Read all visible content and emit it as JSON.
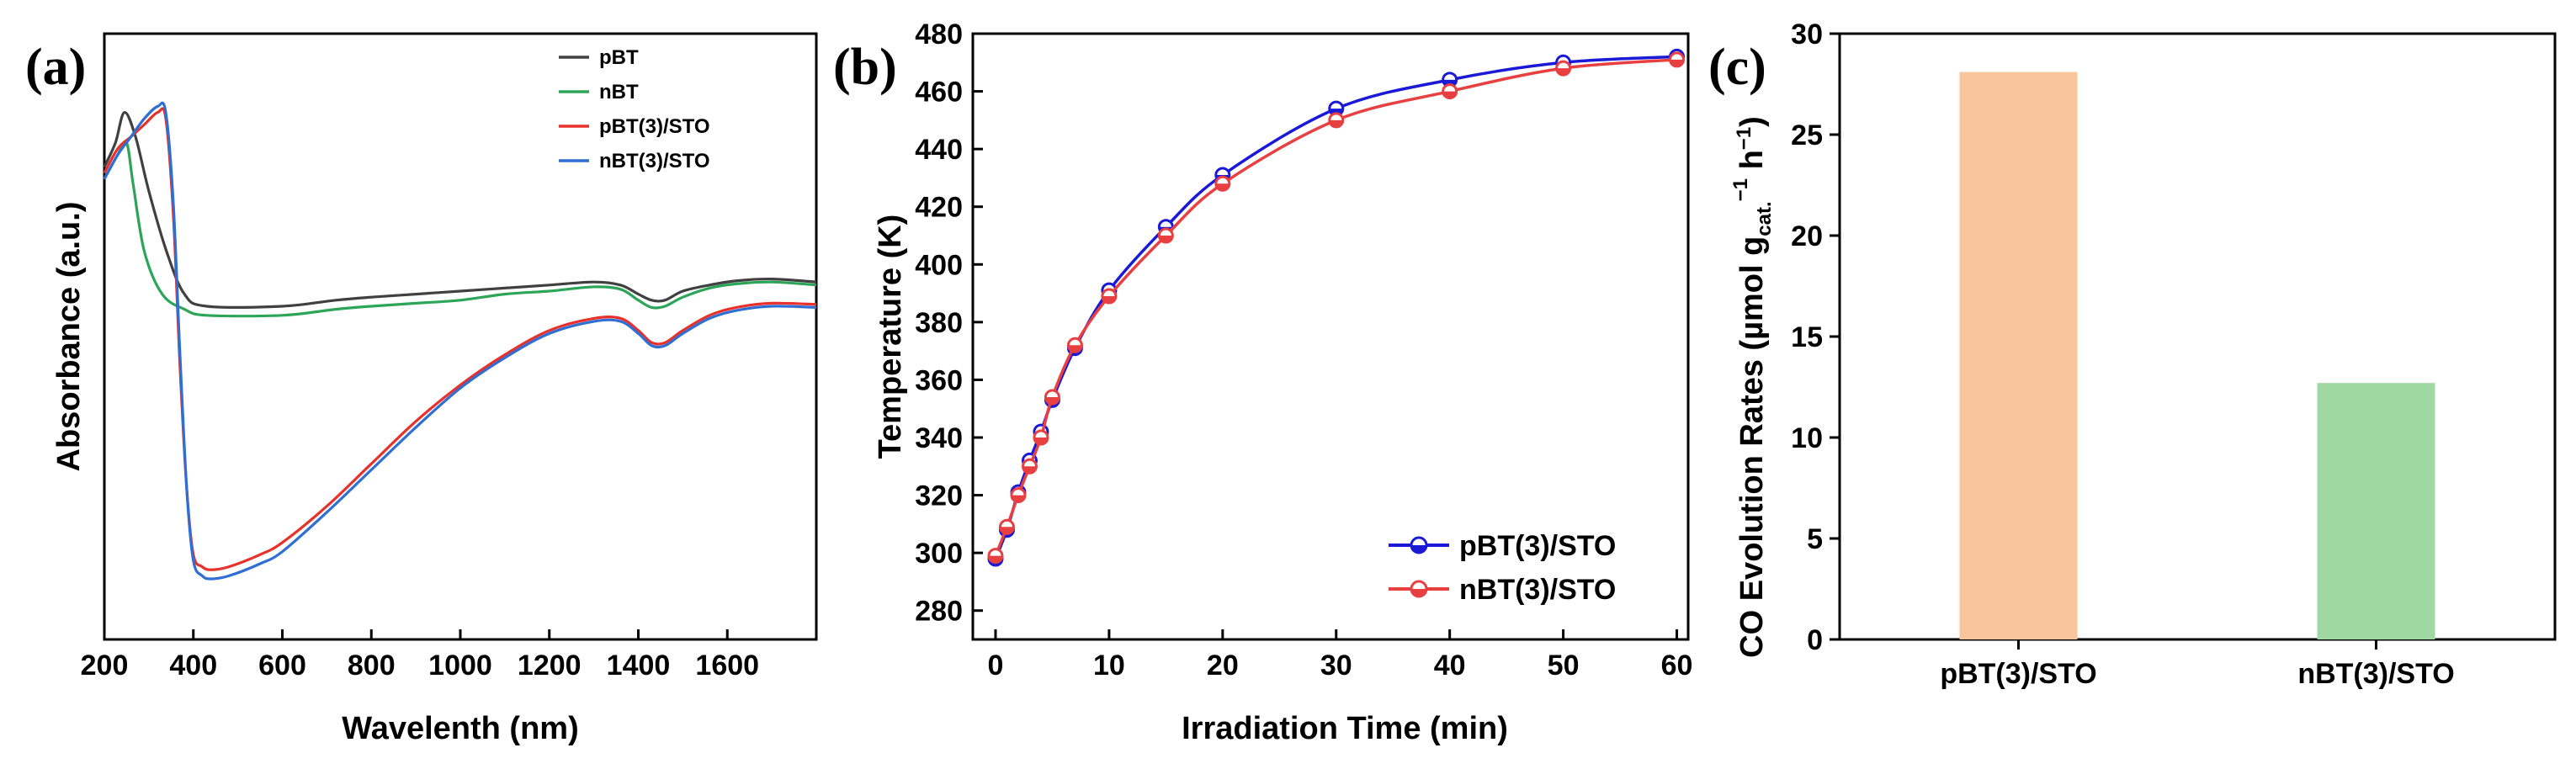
{
  "chart_data": [
    {
      "panel": "(a)",
      "type": "line",
      "xlabel": "Wavelenth (nm)",
      "ylabel": "Absorbance (a.u.)",
      "xlim": [
        200,
        1800
      ],
      "ylim": [
        0,
        1
      ],
      "xticks": [
        200,
        400,
        600,
        800,
        1000,
        1200,
        1400,
        1600
      ],
      "legend": "top-right",
      "series": [
        {
          "name": "pBT",
          "color": "#404040",
          "points": [
            [
              200,
              0.78
            ],
            [
              225,
              0.82
            ],
            [
              245,
              0.87
            ],
            [
              270,
              0.83
            ],
            [
              300,
              0.74
            ],
            [
              340,
              0.64
            ],
            [
              380,
              0.57
            ],
            [
              430,
              0.55
            ],
            [
              600,
              0.55
            ],
            [
              720,
              0.56
            ],
            [
              800,
              0.565
            ],
            [
              900,
              0.57
            ],
            [
              1000,
              0.575
            ],
            [
              1100,
              0.58
            ],
            [
              1200,
              0.585
            ],
            [
              1300,
              0.59
            ],
            [
              1360,
              0.585
            ],
            [
              1400,
              0.57
            ],
            [
              1430,
              0.56
            ],
            [
              1460,
              0.56
            ],
            [
              1500,
              0.575
            ],
            [
              1560,
              0.585
            ],
            [
              1620,
              0.592
            ],
            [
              1700,
              0.595
            ],
            [
              1800,
              0.59
            ]
          ]
        },
        {
          "name": "nBT",
          "color": "#2ca558",
          "points": [
            [
              200,
              0.76
            ],
            [
              230,
              0.8
            ],
            [
              250,
              0.82
            ],
            [
              265,
              0.75
            ],
            [
              290,
              0.64
            ],
            [
              330,
              0.57
            ],
            [
              380,
              0.545
            ],
            [
              430,
              0.535
            ],
            [
              600,
              0.535
            ],
            [
              720,
              0.545
            ],
            [
              800,
              0.55
            ],
            [
              900,
              0.555
            ],
            [
              1000,
              0.56
            ],
            [
              1100,
              0.57
            ],
            [
              1200,
              0.575
            ],
            [
              1300,
              0.582
            ],
            [
              1360,
              0.578
            ],
            [
              1400,
              0.56
            ],
            [
              1430,
              0.548
            ],
            [
              1460,
              0.55
            ],
            [
              1500,
              0.565
            ],
            [
              1560,
              0.58
            ],
            [
              1620,
              0.587
            ],
            [
              1700,
              0.59
            ],
            [
              1800,
              0.585
            ]
          ]
        },
        {
          "name": "pBT(3)/STO",
          "color": "#e8312b",
          "points": [
            [
              200,
              0.77
            ],
            [
              230,
              0.81
            ],
            [
              260,
              0.83
            ],
            [
              290,
              0.85
            ],
            [
              320,
              0.87
            ],
            [
              338,
              0.86
            ],
            [
              355,
              0.7
            ],
            [
              370,
              0.45
            ],
            [
              385,
              0.25
            ],
            [
              400,
              0.14
            ],
            [
              420,
              0.12
            ],
            [
              440,
              0.115
            ],
            [
              480,
              0.12
            ],
            [
              550,
              0.14
            ],
            [
              600,
              0.16
            ],
            [
              700,
              0.22
            ],
            [
              800,
              0.29
            ],
            [
              900,
              0.36
            ],
            [
              1000,
              0.42
            ],
            [
              1100,
              0.47
            ],
            [
              1200,
              0.51
            ],
            [
              1300,
              0.53
            ],
            [
              1360,
              0.53
            ],
            [
              1400,
              0.51
            ],
            [
              1430,
              0.49
            ],
            [
              1460,
              0.49
            ],
            [
              1500,
              0.51
            ],
            [
              1560,
              0.535
            ],
            [
              1620,
              0.548
            ],
            [
              1700,
              0.555
            ],
            [
              1800,
              0.553
            ]
          ]
        },
        {
          "name": "nBT(3)/STO",
          "color": "#2f6fd3",
          "points": [
            [
              200,
              0.76
            ],
            [
              230,
              0.8
            ],
            [
              260,
              0.83
            ],
            [
              290,
              0.86
            ],
            [
              320,
              0.88
            ],
            [
              338,
              0.87
            ],
            [
              355,
              0.72
            ],
            [
              370,
              0.47
            ],
            [
              385,
              0.25
            ],
            [
              400,
              0.13
            ],
            [
              420,
              0.105
            ],
            [
              440,
              0.1
            ],
            [
              480,
              0.105
            ],
            [
              550,
              0.125
            ],
            [
              600,
              0.145
            ],
            [
              700,
              0.21
            ],
            [
              800,
              0.28
            ],
            [
              900,
              0.35
            ],
            [
              1000,
              0.415
            ],
            [
              1100,
              0.465
            ],
            [
              1200,
              0.505
            ],
            [
              1300,
              0.525
            ],
            [
              1360,
              0.525
            ],
            [
              1400,
              0.505
            ],
            [
              1430,
              0.485
            ],
            [
              1460,
              0.485
            ],
            [
              1500,
              0.505
            ],
            [
              1560,
              0.53
            ],
            [
              1620,
              0.543
            ],
            [
              1700,
              0.55
            ],
            [
              1800,
              0.548
            ]
          ]
        }
      ]
    },
    {
      "panel": "(b)",
      "type": "line",
      "xlabel": "Irradiation Time (min)",
      "ylabel": "Temperature (K)",
      "xlim": [
        -2,
        61
      ],
      "ylim": [
        270,
        480
      ],
      "xticks": [
        0,
        10,
        20,
        30,
        40,
        50,
        60
      ],
      "yticks": [
        280,
        300,
        320,
        340,
        360,
        380,
        400,
        420,
        440,
        460,
        480
      ],
      "legend": "bottom-right",
      "series": [
        {
          "name": "pBT(3)/STO",
          "color": "#1a1ad6",
          "x": [
            0,
            1,
            2,
            3,
            4,
            5,
            7,
            10,
            15,
            20,
            30,
            40,
            50,
            60
          ],
          "y": [
            298,
            308,
            321,
            332,
            342,
            353,
            371,
            391,
            413,
            431,
            454,
            464,
            470,
            472
          ]
        },
        {
          "name": "nBT(3)/STO",
          "color": "#e84040",
          "x": [
            0,
            1,
            2,
            3,
            4,
            5,
            7,
            10,
            15,
            20,
            30,
            40,
            50,
            60
          ],
          "y": [
            299,
            309,
            320,
            330,
            340,
            354,
            372,
            389,
            410,
            428,
            450,
            460,
            468,
            471
          ]
        }
      ]
    },
    {
      "panel": "(c)",
      "type": "bar",
      "ylabel": "CO Evolution Rates (µmol g",
      "ylabel_sub": "cat.",
      "ylabel_sup": "−1",
      "ylabel_tail": " h",
      "ylabel_sup2": "−1",
      "ylabel_end": ")",
      "categories": [
        "pBT(3)/STO",
        "nBT(3)/STO"
      ],
      "values": [
        28.1,
        12.7
      ],
      "colors": [
        "#f9c59b",
        "#9fd8a0"
      ],
      "ylim": [
        0,
        30
      ],
      "yticks": [
        0,
        5,
        10,
        15,
        20,
        25,
        30
      ]
    }
  ]
}
